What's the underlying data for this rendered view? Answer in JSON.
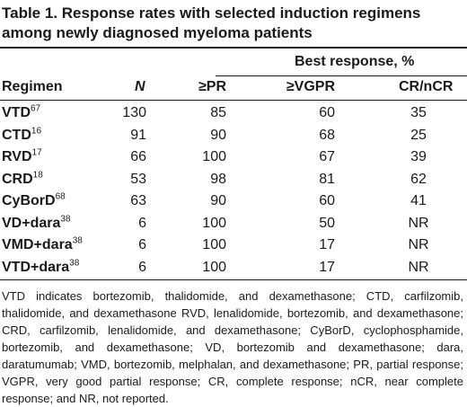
{
  "table": {
    "caption": "Table 1.   Response rates with selected induction regimens among newly diagnosed myeloma patients",
    "group_header": "Best response, %",
    "columns": {
      "regimen": "Regimen",
      "n": "N",
      "pr": "≥PR",
      "vgpr": "≥VGPR",
      "cr": "CR/nCR"
    },
    "rows": [
      {
        "regimen": "VTD",
        "ref": "67",
        "n": "130",
        "pr": "85",
        "vgpr": "60",
        "cr": "35"
      },
      {
        "regimen": "CTD",
        "ref": "16",
        "n": "91",
        "pr": "90",
        "vgpr": "68",
        "cr": "25"
      },
      {
        "regimen": "RVD",
        "ref": "17",
        "n": "66",
        "pr": "100",
        "vgpr": "67",
        "cr": "39"
      },
      {
        "regimen": "CRD",
        "ref": "18",
        "n": "53",
        "pr": "98",
        "vgpr": "81",
        "cr": "62"
      },
      {
        "regimen": "CyBorD",
        "ref": "68",
        "n": "63",
        "pr": "90",
        "vgpr": "60",
        "cr": "41"
      },
      {
        "regimen": "VD+dara",
        "ref": "38",
        "n": "6",
        "pr": "100",
        "vgpr": "50",
        "cr": "NR"
      },
      {
        "regimen": "VMD+dara",
        "ref": "38",
        "n": "6",
        "pr": "100",
        "vgpr": "17",
        "cr": "NR"
      },
      {
        "regimen": "VTD+dara",
        "ref": "38",
        "n": "6",
        "pr": "100",
        "vgpr": "17",
        "cr": "NR"
      }
    ],
    "footnote": "VTD indicates bortezomib, thalidomide, and dexamethasone; CTD, carfilzomib, thalidomide, and dexamethasone RVD, lenalidomide, bortezomib, and dexamethasone; CRD, carfilzomib, lenalidomide, and dexamethasone; CyBorD, cyclophosphamide, bortezomib, and dexamethasone; VD, bortezomib and dexamethasone; dara, daratumumab; VMD, bortezomib, melphalan, and dexamethasone; PR, partial response; VGPR, very good partial response; CR, complete response; nCR, near complete response; and NR, not reported."
  }
}
